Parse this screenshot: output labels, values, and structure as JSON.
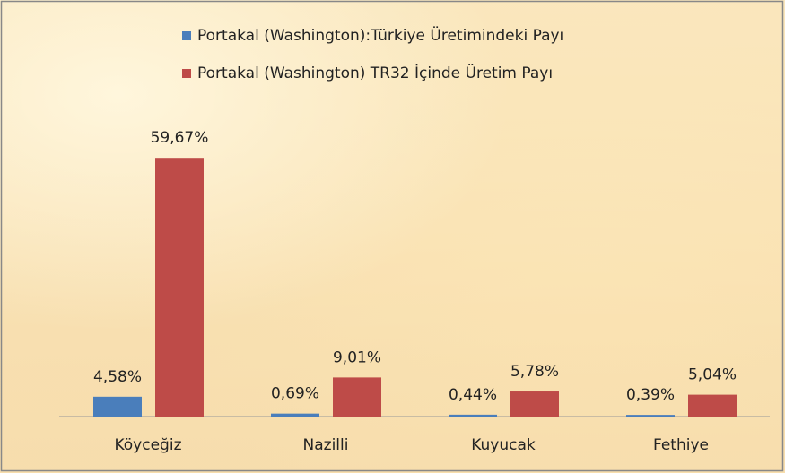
{
  "chart_data": {
    "type": "bar",
    "categories": [
      "Köyceğiz",
      "Nazilli",
      "Kuyucak",
      "Fethiye"
    ],
    "series": [
      {
        "name": "Portakal (Washington):Türkiye Üretimindeki Payı",
        "color": "#4a7ebb",
        "values": [
          4.58,
          0.69,
          0.44,
          0.39
        ],
        "value_labels": [
          "4,58%",
          "0,69%",
          "0,44%",
          "0,39%"
        ]
      },
      {
        "name": "Portakal (Washington) TR32 İçinde Üretim Payı",
        "color": "#be4b48",
        "values": [
          59.67,
          9.01,
          5.78,
          5.04
        ],
        "value_labels": [
          "59,67%",
          "9,01%",
          "5,78%",
          "5,04%"
        ]
      }
    ]
  }
}
